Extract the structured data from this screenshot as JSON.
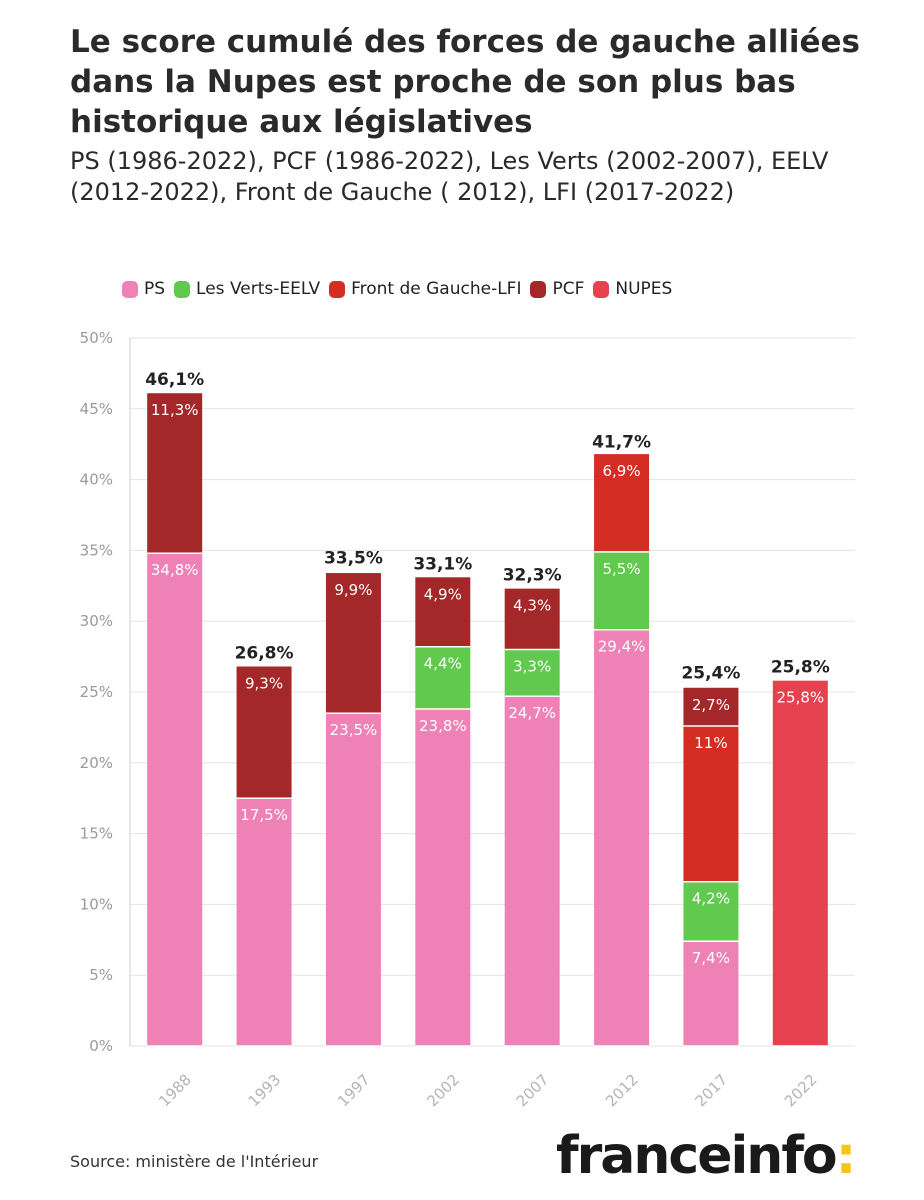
{
  "header": {
    "title": "Le score cumulé des forces de gauche alliées dans la Nupes est proche de son plus bas historique aux législatives",
    "subtitle": "PS (1986-2022), PCF (1986-2022), Les Verts (2002-2007), EELV (2012-2022), Front de Gauche ( 2012), LFI (2017-2022)"
  },
  "legend": [
    {
      "label": "PS",
      "color": "#ee82b7"
    },
    {
      "label": "Les Verts-EELV",
      "color": "#62c94f"
    },
    {
      "label": "Front de Gauche-LFI",
      "color": "#d42d24"
    },
    {
      "label": "PCF",
      "color": "#a4282a"
    },
    {
      "label": "NUPES",
      "color": "#e5414f"
    }
  ],
  "footer": {
    "source": "Source: ministère de l'Intérieur",
    "logo_text": "franceinfo",
    "logo_colon": ":"
  },
  "chart_data": {
    "type": "bar",
    "stacked": true,
    "categories": [
      "1988",
      "1993",
      "1997",
      "2002",
      "2007",
      "2012",
      "2017",
      "2022"
    ],
    "ylim": [
      0,
      50
    ],
    "yticks": [
      0,
      5,
      10,
      15,
      20,
      25,
      30,
      35,
      40,
      45,
      50
    ],
    "ytick_labels": [
      "0%",
      "5%",
      "10%",
      "15%",
      "20%",
      "25%",
      "30%",
      "35%",
      "40%",
      "45%",
      "50%"
    ],
    "grid": true,
    "legend_position": "top",
    "series": [
      {
        "name": "PS",
        "color": "#ee82b7",
        "values": [
          34.8,
          17.5,
          23.5,
          23.8,
          24.7,
          29.4,
          7.4,
          null
        ],
        "labels": [
          "34,8%",
          "17,5%",
          "23,5%",
          "23,8%",
          "24,7%",
          "29,4%",
          "7,4%",
          null
        ]
      },
      {
        "name": "Les Verts-EELV",
        "color": "#62c94f",
        "values": [
          null,
          null,
          null,
          4.4,
          3.3,
          5.5,
          4.2,
          null
        ],
        "labels": [
          null,
          null,
          null,
          "4,4%",
          "3,3%",
          "5,5%",
          "4,2%",
          null
        ]
      },
      {
        "name": "Front de Gauche-LFI",
        "color": "#d42d24",
        "values": [
          null,
          null,
          null,
          null,
          null,
          6.9,
          11,
          null
        ],
        "labels": [
          null,
          null,
          null,
          null,
          null,
          "6,9%",
          "11%",
          null
        ]
      },
      {
        "name": "PCF",
        "color": "#a4282a",
        "values": [
          11.3,
          9.3,
          9.9,
          4.9,
          4.3,
          null,
          2.7,
          null
        ],
        "labels": [
          "11,3%",
          "9,3%",
          "9,9%",
          "4,9%",
          "4,3%",
          null,
          "2,7%",
          null
        ]
      },
      {
        "name": "NUPES",
        "color": "#e5414f",
        "values": [
          null,
          null,
          null,
          null,
          null,
          null,
          null,
          25.8
        ],
        "labels": [
          null,
          null,
          null,
          null,
          null,
          null,
          null,
          "25,8%"
        ]
      }
    ],
    "totals": [
      46.1,
      26.8,
      33.5,
      33.1,
      32.3,
      41.7,
      25.4,
      25.8
    ],
    "total_labels": [
      "46,1%",
      "26,8%",
      "33,5%",
      "33,1%",
      "32,3%",
      "41,7%",
      "25,4%",
      "25,8%"
    ]
  }
}
